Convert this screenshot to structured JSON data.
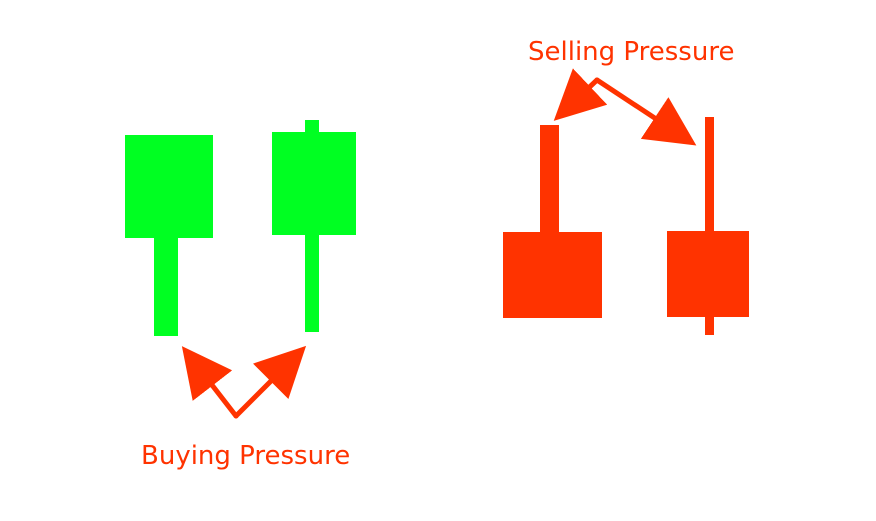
{
  "colors": {
    "bullish": "#00ff22",
    "bearish": "#ff3300",
    "annotation": "#ff3300",
    "background": "#ffffff"
  },
  "annotations": {
    "selling_pressure": "Selling Pressure",
    "buying_pressure": "Buying Pressure"
  },
  "candles": [
    {
      "name": "bullish-candle-1",
      "color_key": "bullish"
    },
    {
      "name": "bullish-candle-2",
      "color_key": "bullish"
    },
    {
      "name": "bearish-candle-1",
      "color_key": "bearish"
    },
    {
      "name": "bearish-candle-2",
      "color_key": "bearish"
    }
  ]
}
